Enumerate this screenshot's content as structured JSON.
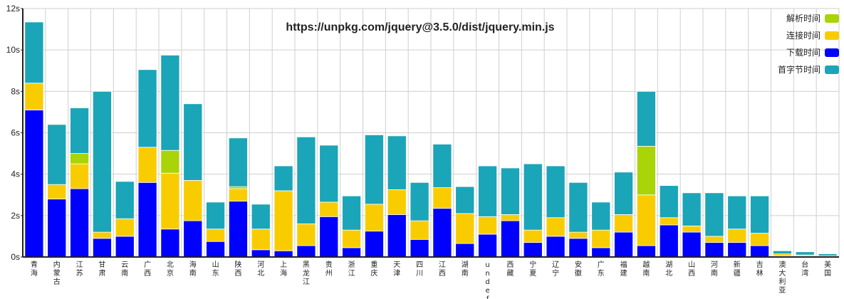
{
  "chart_data": {
    "type": "bar",
    "stacked": true,
    "title": "https://unpkg.com/jquery@3.5.0/dist/jquery.min.js",
    "xlabel": "",
    "ylabel": "",
    "ylim": [
      0,
      12
    ],
    "yticks": [
      "0s",
      "2s",
      "4s",
      "6s",
      "8s",
      "10s",
      "12s"
    ],
    "grid": true,
    "legend_position": "top-right",
    "categories": [
      "青海",
      "内蒙古",
      "江苏",
      "甘肃",
      "云南",
      "广西",
      "北京",
      "海南",
      "山东",
      "陕西",
      "河北",
      "上海",
      "黑龙江",
      "贵州",
      "浙江",
      "重庆",
      "天津",
      "四川",
      "江西",
      "湖南",
      "undefined",
      "西藏",
      "宁夏",
      "辽宁",
      "安徽",
      "广东",
      "福建",
      "越南",
      "湖北",
      "山西",
      "河南",
      "新疆",
      "吉林",
      "澳大利亚",
      "台湾",
      "美国"
    ],
    "category_label_lines": [
      [
        "青",
        "海"
      ],
      [
        "内",
        "蒙",
        "古"
      ],
      [
        "江",
        "苏"
      ],
      [
        "甘",
        "肃"
      ],
      [
        "云",
        "南"
      ],
      [
        "广",
        "西"
      ],
      [
        "北",
        "京"
      ],
      [
        "海",
        "南"
      ],
      [
        "山",
        "东"
      ],
      [
        "陕",
        "西"
      ],
      [
        "河",
        "北"
      ],
      [
        "上",
        "海"
      ],
      [
        "黑",
        "龙",
        "江"
      ],
      [
        "贵",
        "州"
      ],
      [
        "浙",
        "江"
      ],
      [
        "重",
        "庆"
      ],
      [
        "天",
        "津"
      ],
      [
        "四",
        "川"
      ],
      [
        "江",
        "西"
      ],
      [
        "湖",
        "南"
      ],
      [
        "u",
        "n",
        "d",
        "e",
        "f"
      ],
      [
        "西",
        "藏"
      ],
      [
        "宁",
        "夏"
      ],
      [
        "辽",
        "宁"
      ],
      [
        "安",
        "徽"
      ],
      [
        "广",
        "东"
      ],
      [
        "福",
        "建"
      ],
      [
        "越",
        "南"
      ],
      [
        "湖",
        "北"
      ],
      [
        "山",
        "西"
      ],
      [
        "河",
        "南"
      ],
      [
        "新",
        "疆"
      ],
      [
        "吉",
        "林"
      ],
      [
        "澳",
        "大",
        "利",
        "亚"
      ],
      [
        "台",
        "湾"
      ],
      [
        "美",
        "国"
      ]
    ],
    "series": [
      {
        "name": "下载时间",
        "color": "#0000ff",
        "values": [
          7.1,
          2.8,
          3.3,
          0.9,
          1.0,
          3.6,
          1.35,
          1.75,
          0.75,
          2.7,
          0.35,
          0.3,
          0.55,
          1.95,
          0.45,
          1.25,
          2.05,
          0.85,
          2.35,
          0.65,
          1.1,
          1.75,
          0.7,
          1.0,
          0.9,
          0.45,
          1.2,
          0.55,
          1.55,
          1.2,
          0.7,
          0.7,
          0.55,
          0.05,
          0.05,
          0.05
        ]
      },
      {
        "name": "连接时间",
        "color": "#f9cc00",
        "values": [
          1.3,
          0.7,
          1.2,
          0.3,
          0.85,
          1.7,
          2.7,
          1.95,
          0.6,
          0.6,
          1.0,
          2.9,
          1.05,
          0.7,
          0.85,
          1.3,
          1.2,
          0.9,
          1.0,
          1.45,
          0.85,
          0.3,
          0.6,
          0.9,
          0.3,
          0.85,
          0.85,
          2.45,
          0.35,
          0.3,
          0.3,
          0.65,
          0.6,
          0.1,
          0.05,
          0.0
        ]
      },
      {
        "name": "解析时间",
        "color": "#a8d408",
        "values": [
          0.0,
          0.0,
          0.5,
          0.0,
          0.0,
          0.0,
          1.1,
          0.0,
          0.0,
          0.1,
          0.0,
          0.0,
          0.0,
          0.0,
          0.0,
          0.0,
          0.0,
          0.0,
          0.0,
          0.0,
          0.0,
          0.0,
          0.0,
          0.0,
          0.0,
          0.0,
          0.0,
          2.35,
          0.0,
          0.0,
          0.0,
          0.0,
          0.0,
          0.0,
          0.0,
          0.0
        ]
      },
      {
        "name": "首字节时间",
        "color": "#1aa5b8",
        "values": [
          2.95,
          2.9,
          2.2,
          6.8,
          1.8,
          3.75,
          4.6,
          3.7,
          1.3,
          2.35,
          1.2,
          1.2,
          4.2,
          2.75,
          1.65,
          3.35,
          2.6,
          1.85,
          2.1,
          1.3,
          2.45,
          2.25,
          3.2,
          2.5,
          2.4,
          1.35,
          2.05,
          2.65,
          1.55,
          1.6,
          2.1,
          1.6,
          1.8,
          0.15,
          0.15,
          0.1
        ]
      }
    ],
    "legend_order": [
      "解析时间",
      "连接时间",
      "下载时间",
      "首字节时间"
    ]
  }
}
